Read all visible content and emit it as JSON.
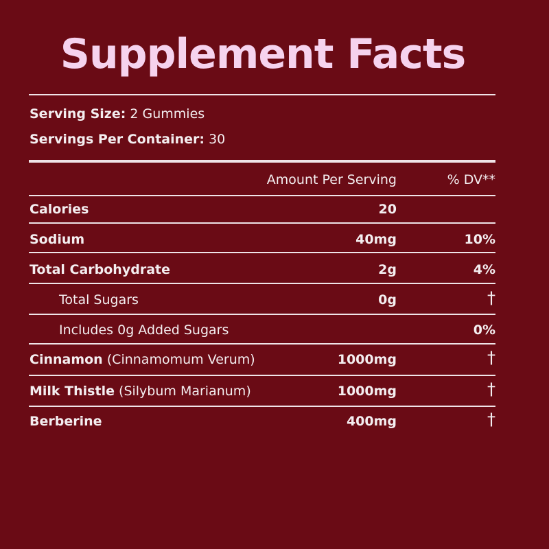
{
  "title": "Supplement Facts",
  "serving": [
    {
      "label": "Serving Size:",
      "value": "2 Gummies"
    },
    {
      "label": "Servings Per Container:",
      "value": "30"
    }
  ],
  "table": {
    "header": [
      "Amount Per Serving",
      "% DV**"
    ],
    "rows": [
      {
        "name": "Calories",
        "amount": "20"
      },
      {
        "name": "Sodium",
        "amount": "40mg",
        "dv": "10%"
      },
      {
        "name": "Total Carbohydrate",
        "amount": "2g",
        "dv": "4%"
      },
      {
        "name": "Total Sugars",
        "amount": "0g",
        "dv": "†"
      },
      {
        "name": "Includes 0g Added Sugars",
        "dv": "0%"
      },
      {
        "name": "Cinnamon",
        "detail": "(Cinnamomum Verum)",
        "amount": "1000mg",
        "dv": "†"
      },
      {
        "name": "Milk Thistle",
        "detail": "(Silybum Marianum)",
        "amount": "1000mg",
        "dv": "†"
      },
      {
        "name": "Berberine",
        "amount": "400mg",
        "dv": "†"
      }
    ]
  }
}
